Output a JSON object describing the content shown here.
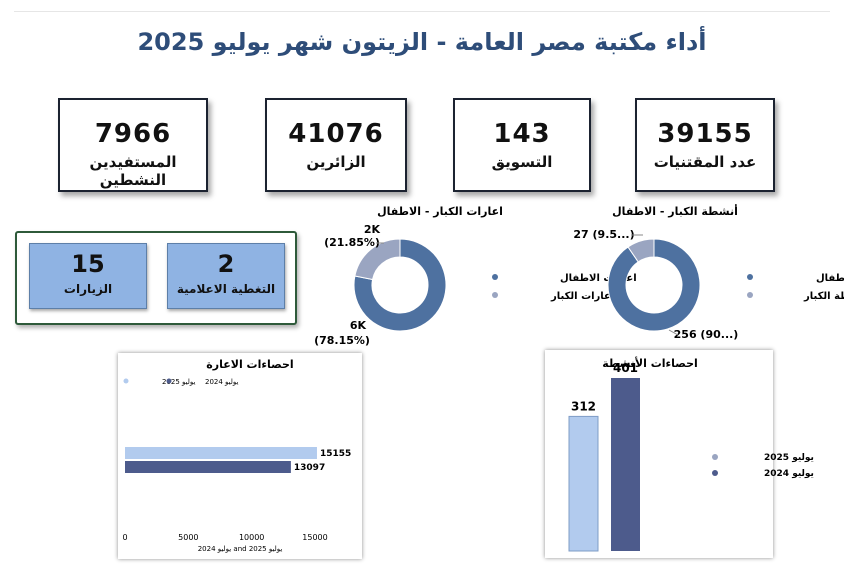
{
  "title": "أداء مكتبة مصر العامة - الزيتون  شهر يوليو 2025",
  "kpis": [
    {
      "value": "7966",
      "label": "المستفيدين النشطين"
    },
    {
      "value": "41076",
      "label": "الزائرين"
    },
    {
      "value": "143",
      "label": "التسويق"
    },
    {
      "value": "39155",
      "label": "عدد المقتنيات"
    }
  ],
  "tiles": [
    {
      "value": "15",
      "label": "الزيارات"
    },
    {
      "value": "2",
      "label": "التغطية الاعلامية"
    }
  ],
  "colors": {
    "dark_blue": "#4e71a0",
    "light_slate": "#9aa5c1",
    "bar_light": "#b2cbee",
    "bar_dark": "#4d5b8c",
    "title": "#2e4d79"
  },
  "chart_data": [
    {
      "type": "pie",
      "title": "اعارات الكبار - الاطفال",
      "slices": [
        {
          "name": "اعارات الاطفال",
          "value": 78.15,
          "label": "6K",
          "pct_label": "(78.15%)"
        },
        {
          "name": "اعارات الكبار",
          "value": 21.85,
          "label": "2K",
          "pct_label": "(21.85%)"
        }
      ],
      "legend": "right"
    },
    {
      "type": "pie",
      "title": "أنشطة الكبار - الاطفال",
      "slices": [
        {
          "name": "انشطة الاطفال",
          "value": 256,
          "label": "256 (90...)"
        },
        {
          "name": "انشطة الكبار",
          "value": 27,
          "label": "27 (9.5...)"
        }
      ],
      "legend": "right"
    },
    {
      "type": "bar",
      "orientation": "horizontal",
      "title": "احصاءات الاعارة",
      "series": [
        {
          "name": "يوليو 2025",
          "values": [
            15155
          ]
        },
        {
          "name": "يوليو 2024",
          "values": [
            13097
          ]
        }
      ],
      "xlabel": "يوليو 2024 and يوليو 2025",
      "xlim": [
        0,
        15000
      ],
      "xticks": [
        "0",
        "5000",
        "10000",
        "15000"
      ],
      "legend": "top"
    },
    {
      "type": "bar",
      "title": "احصاءات الأنشطة",
      "series": [
        {
          "name": "يوليو 2025",
          "values": [
            312
          ]
        },
        {
          "name": "يوليو 2024",
          "values": [
            401
          ]
        }
      ],
      "legend": "right"
    }
  ]
}
